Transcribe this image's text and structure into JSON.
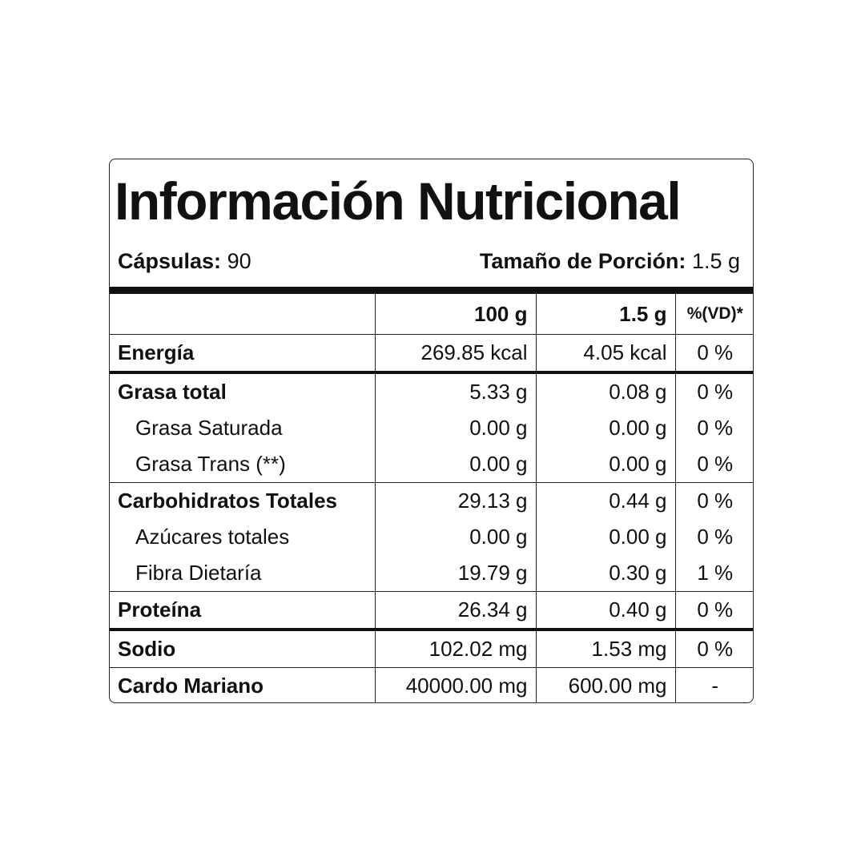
{
  "title": "Información Nutricional",
  "capsules": {
    "label": "Cápsulas:",
    "value": "90"
  },
  "serving": {
    "label": "Tamaño de Porción:",
    "value": "1.5 g"
  },
  "columns": [
    "",
    "100 g",
    "1.5 g",
    "%(VD)*"
  ],
  "rows": [
    {
      "name": "Energía",
      "per100": "269.85 kcal",
      "perServing": "4.05 kcal",
      "vd": "0 %",
      "sub": false,
      "border": "thick"
    },
    {
      "name": "Grasa total",
      "per100": "5.33 g",
      "perServing": "0.08 g",
      "vd": "0 %",
      "sub": false,
      "border": "none"
    },
    {
      "name": "Grasa Saturada",
      "per100": "0.00 g",
      "perServing": "0.00 g",
      "vd": "0 %",
      "sub": true,
      "border": "none"
    },
    {
      "name": "Grasa Trans (**)",
      "per100": "0.00 g",
      "perServing": "0.00 g",
      "vd": "0 %",
      "sub": true,
      "border": "thin"
    },
    {
      "name": "Carbohidratos Totales",
      "per100": "29.13 g",
      "perServing": "0.44 g",
      "vd": "0 %",
      "sub": false,
      "border": "none"
    },
    {
      "name": "Azúcares totales",
      "per100": "0.00 g",
      "perServing": "0.00 g",
      "vd": "0 %",
      "sub": true,
      "border": "none"
    },
    {
      "name": "Fibra Dietaría",
      "per100": "19.79 g",
      "perServing": "0.30 g",
      "vd": "1 %",
      "sub": true,
      "border": "thin"
    },
    {
      "name": "Proteína",
      "per100": "26.34 g",
      "perServing": "0.40 g",
      "vd": "0 %",
      "sub": false,
      "border": "thick"
    },
    {
      "name": "Sodio",
      "per100": "102.02 mg",
      "perServing": "1.53 mg",
      "vd": "0 %",
      "sub": false,
      "border": "thin"
    },
    {
      "name": "Cardo Mariano",
      "per100": "40000.00 mg",
      "perServing": "600.00 mg",
      "vd": "-",
      "sub": false,
      "border": "none"
    }
  ]
}
